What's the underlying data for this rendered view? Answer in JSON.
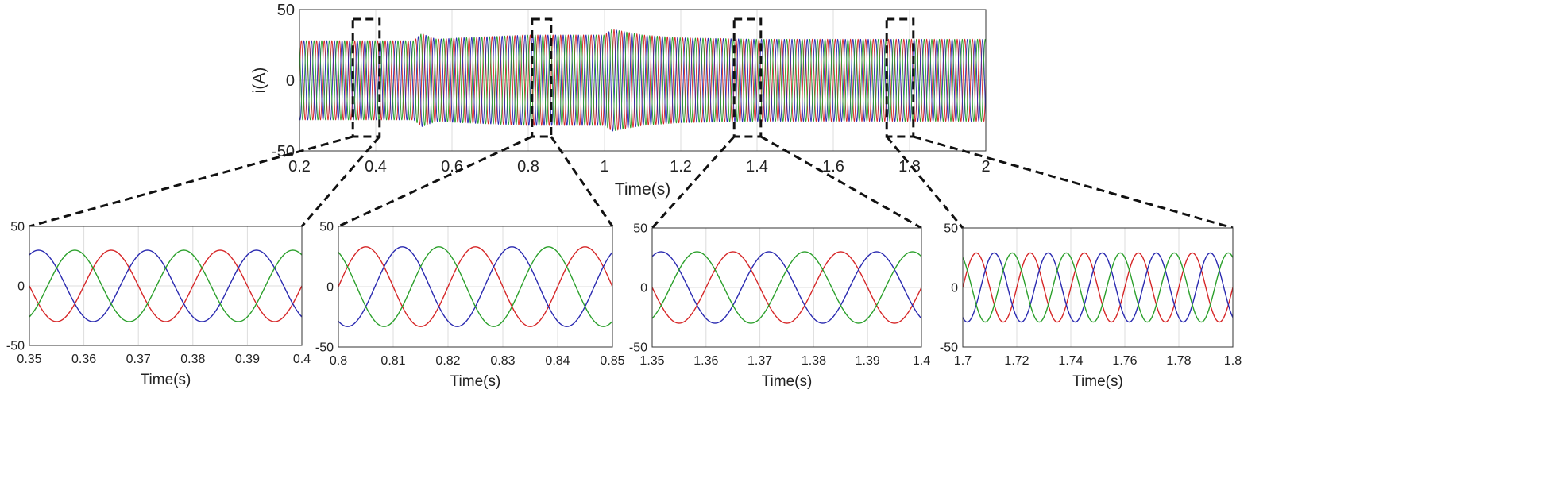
{
  "colors": {
    "phase_a": "#d62728",
    "phase_b": "#2a2ab0",
    "phase_c": "#2ca02c"
  },
  "chart_data": [
    {
      "id": "overview",
      "type": "line",
      "xlabel": "Time(s)",
      "ylabel": "i(A)",
      "xlim": [
        0.2,
        2
      ],
      "ylim": [
        -50,
        50
      ],
      "xticks": [
        "0.2",
        "0.4",
        "0.6",
        "0.8",
        "1",
        "1.2",
        "1.4",
        "1.6",
        "1.8",
        "2"
      ],
      "yticks": [
        "-50",
        "0",
        "50"
      ],
      "grid": true,
      "frequency_hz": 50,
      "amplitude_profile": [
        [
          0.2,
          28
        ],
        [
          0.5,
          28
        ],
        [
          0.52,
          33
        ],
        [
          0.56,
          29
        ],
        [
          0.62,
          30
        ],
        [
          0.8,
          32
        ],
        [
          1.0,
          32
        ],
        [
          1.02,
          36
        ],
        [
          1.1,
          32
        ],
        [
          1.2,
          30
        ],
        [
          1.4,
          29
        ],
        [
          1.7,
          29
        ],
        [
          2.0,
          29
        ]
      ],
      "series": [
        {
          "phase": "a"
        },
        {
          "phase": "b"
        },
        {
          "phase": "c"
        }
      ],
      "zoom_boxes": [
        [
          0.34,
          0.41
        ],
        [
          0.81,
          0.86
        ],
        [
          1.34,
          1.41
        ],
        [
          1.74,
          1.81
        ]
      ]
    },
    {
      "id": "zoom1",
      "type": "line",
      "xlabel": "Time(s)",
      "xlim": [
        0.35,
        0.4
      ],
      "ylim": [
        -50,
        50
      ],
      "xticks": [
        "0.35",
        "0.36",
        "0.37",
        "0.38",
        "0.39",
        "0.4"
      ],
      "yticks": [
        "-50",
        "0",
        "50"
      ],
      "grid": true,
      "frequency_hz": 50,
      "amplitude": 30,
      "series": [
        {
          "phase": "a"
        },
        {
          "phase": "b"
        },
        {
          "phase": "c"
        }
      ]
    },
    {
      "id": "zoom2",
      "type": "line",
      "xlabel": "Time(s)",
      "xlim": [
        0.8,
        0.85
      ],
      "ylim": [
        -50,
        50
      ],
      "xticks": [
        "0.8",
        "0.81",
        "0.82",
        "0.83",
        "0.84",
        "0.85"
      ],
      "yticks": [
        "-50",
        "0",
        "50"
      ],
      "grid": true,
      "frequency_hz": 50,
      "amplitude": 33,
      "series": [
        {
          "phase": "a"
        },
        {
          "phase": "b"
        },
        {
          "phase": "c"
        }
      ]
    },
    {
      "id": "zoom3",
      "type": "line",
      "xlabel": "Time(s)",
      "xlim": [
        1.35,
        1.4
      ],
      "ylim": [
        -50,
        50
      ],
      "xticks": [
        "1.35",
        "1.36",
        "1.37",
        "1.38",
        "1.39",
        "1.4"
      ],
      "yticks": [
        "-50",
        "0",
        "50"
      ],
      "grid": true,
      "frequency_hz": 50,
      "amplitude": 30,
      "series": [
        {
          "phase": "a"
        },
        {
          "phase": "b"
        },
        {
          "phase": "c"
        }
      ]
    },
    {
      "id": "zoom4",
      "type": "line",
      "xlabel": "Time(s)",
      "xlim": [
        1.7,
        1.8
      ],
      "ylim": [
        -50,
        50
      ],
      "xticks": [
        "1.7",
        "1.72",
        "1.74",
        "1.76",
        "1.78",
        "1.8"
      ],
      "yticks": [
        "-50",
        "0",
        "50"
      ],
      "grid": true,
      "frequency_hz": 50,
      "amplitude": 29,
      "series": [
        {
          "phase": "a"
        },
        {
          "phase": "b"
        },
        {
          "phase": "c"
        }
      ]
    }
  ]
}
